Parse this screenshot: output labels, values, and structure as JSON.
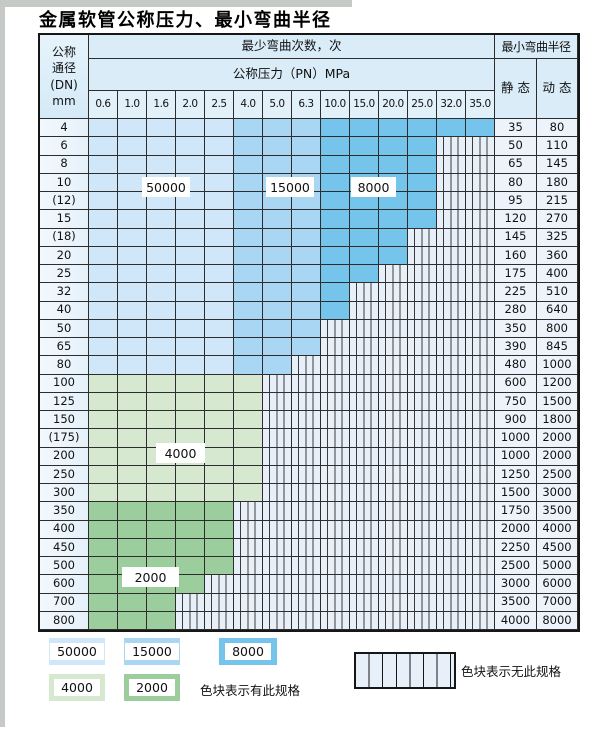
{
  "title": "金属软管公称压力、最小弯曲半径",
  "table": {
    "dn_header_lines": [
      "公称",
      "通径",
      "(DN)",
      "mm"
    ],
    "cycles_header": "最少弯曲次数，次",
    "pressure_header": "公称压力（PN）MPa",
    "radius_header": "最小弯曲半径",
    "static_header": "静 态",
    "dynamic_header": "动 态",
    "pressure_columns": [
      "0.6",
      "1.0",
      "1.6",
      "2.0",
      "2.5",
      "4.0",
      "5.0",
      "6.3",
      "10.0",
      "15.0",
      "20.0",
      "25.0",
      "32.0",
      "35.0"
    ],
    "rows": [
      {
        "dn": "4",
        "static": "35",
        "dynamic": "80",
        "colored_through": "35.0",
        "zone": "blue"
      },
      {
        "dn": "6",
        "static": "50",
        "dynamic": "110",
        "colored_through": "25.0",
        "zone": "blue"
      },
      {
        "dn": "8",
        "static": "65",
        "dynamic": "145",
        "colored_through": "25.0",
        "zone": "blue"
      },
      {
        "dn": "10",
        "static": "80",
        "dynamic": "180",
        "colored_through": "25.0",
        "zone": "blue"
      },
      {
        "dn": "(12)",
        "static": "95",
        "dynamic": "215",
        "colored_through": "25.0",
        "zone": "blue"
      },
      {
        "dn": "15",
        "static": "120",
        "dynamic": "270",
        "colored_through": "25.0",
        "zone": "blue"
      },
      {
        "dn": "(18)",
        "static": "145",
        "dynamic": "325",
        "colored_through": "20.0",
        "zone": "blue"
      },
      {
        "dn": "20",
        "static": "160",
        "dynamic": "360",
        "colored_through": "20.0",
        "zone": "blue"
      },
      {
        "dn": "25",
        "static": "175",
        "dynamic": "400",
        "colored_through": "15.0",
        "zone": "blue"
      },
      {
        "dn": "32",
        "static": "225",
        "dynamic": "510",
        "colored_through": "10.0",
        "zone": "blue"
      },
      {
        "dn": "40",
        "static": "280",
        "dynamic": "640",
        "colored_through": "10.0",
        "zone": "blue"
      },
      {
        "dn": "50",
        "static": "350",
        "dynamic": "800",
        "colored_through": "6.3",
        "zone": "blue"
      },
      {
        "dn": "65",
        "static": "390",
        "dynamic": "845",
        "colored_through": "6.3",
        "zone": "blue"
      },
      {
        "dn": "80",
        "static": "480",
        "dynamic": "1000",
        "colored_through": "5.0",
        "zone": "blue"
      },
      {
        "dn": "100",
        "static": "600",
        "dynamic": "1200",
        "colored_through": "4.0",
        "zone": "green_4000"
      },
      {
        "dn": "125",
        "static": "750",
        "dynamic": "1500",
        "colored_through": "4.0",
        "zone": "green_4000"
      },
      {
        "dn": "150",
        "static": "900",
        "dynamic": "1800",
        "colored_through": "4.0",
        "zone": "green_4000"
      },
      {
        "dn": "(175)",
        "static": "1000",
        "dynamic": "2000",
        "colored_through": "4.0",
        "zone": "green_4000"
      },
      {
        "dn": "200",
        "static": "1000",
        "dynamic": "2000",
        "colored_through": "4.0",
        "zone": "green_4000"
      },
      {
        "dn": "250",
        "static": "1250",
        "dynamic": "2500",
        "colored_through": "4.0",
        "zone": "green_4000"
      },
      {
        "dn": "300",
        "static": "1500",
        "dynamic": "3000",
        "colored_through": "4.0",
        "zone": "green_4000"
      },
      {
        "dn": "350",
        "static": "1750",
        "dynamic": "3500",
        "colored_through": "2.5",
        "zone": "green_2000"
      },
      {
        "dn": "400",
        "static": "2000",
        "dynamic": "4000",
        "colored_through": "2.5",
        "zone": "green_2000"
      },
      {
        "dn": "450",
        "static": "2250",
        "dynamic": "4500",
        "colored_through": "2.5",
        "zone": "green_2000"
      },
      {
        "dn": "500",
        "static": "2500",
        "dynamic": "5000",
        "colored_through": "2.5",
        "zone": "green_2000"
      },
      {
        "dn": "600",
        "static": "3000",
        "dynamic": "6000",
        "colored_through": "2.0",
        "zone": "green_2000"
      },
      {
        "dn": "700",
        "static": "3500",
        "dynamic": "7000",
        "colored_through": "1.6",
        "zone": "green_2000"
      },
      {
        "dn": "800",
        "static": "4000",
        "dynamic": "8000",
        "colored_through": "1.6",
        "zone": "green_2000"
      }
    ]
  },
  "overlays": [
    {
      "label": "50000"
    },
    {
      "label": "15000"
    },
    {
      "label": "8000"
    },
    {
      "label": "4000"
    },
    {
      "label": "2000"
    }
  ],
  "legend": {
    "items": [
      {
        "label": "50000"
      },
      {
        "label": "15000"
      },
      {
        "label": "8000"
      },
      {
        "label": "4000"
      },
      {
        "label": "2000"
      }
    ],
    "has_spec_text": "色块表示有此规格",
    "no_spec_text": "色块表示无此规格"
  },
  "colors": {
    "cycles_50000": "#cfe7f8",
    "cycles_15000": "#a9d7f3",
    "cycles_8000": "#74c4ec",
    "cycles_4000": "#d7e8d0",
    "cycles_2000": "#9ccd9d",
    "no_spec_fill": "#e7eff9",
    "no_spec_line": "#3c3c3c",
    "grid_line": "#2d2d2d",
    "header_bg": "#d9ecf8"
  }
}
